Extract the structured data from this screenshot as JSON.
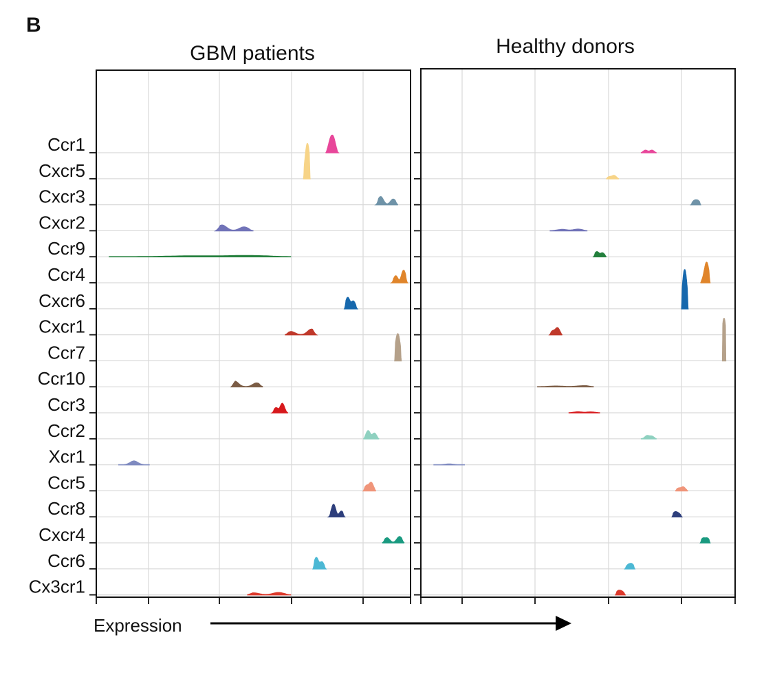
{
  "figure": {
    "panel_label": "B",
    "x_axis_label": "Expression"
  },
  "chart_data": {
    "type": "ridgeline",
    "x_axis_label": "Expression",
    "genes": [
      "Ccr1",
      "Cxcr5",
      "Cxcr3",
      "Cxcr2",
      "Ccr9",
      "Ccr4",
      "Cxcr6",
      "Cxcr1",
      "Ccr7",
      "Ccr10",
      "Ccr3",
      "Ccr2",
      "Xcr1",
      "Ccr5",
      "Ccr8",
      "Cxcr4",
      "Ccr6",
      "Cx3cr1"
    ],
    "colors": {
      "Ccr1": "#e8479a",
      "Cxcr5": "#f7d488",
      "Cxcr3": "#6f93a8",
      "Cxcr2": "#7173b8",
      "Ccr9": "#237f3c",
      "Ccr4": "#e0852b",
      "Cxcr6": "#1668ad",
      "Cxcr1": "#c0392b",
      "Ccr7": "#b5a18a",
      "Ccr10": "#7b5c45",
      "Ccr3": "#d7191c",
      "Ccr2": "#8fd1c0",
      "Xcr1": "#7f8ac0",
      "Ccr5": "#f0957a",
      "Ccr8": "#2e3f7c",
      "Cxcr4": "#1a9a80",
      "Ccr6": "#4cb8d4",
      "Cx3cr1": "#dc3a2c"
    },
    "panels": [
      {
        "title": "GBM patients",
        "x_range": [
          0.0,
          1.0
        ],
        "grid_x": [
          0.17,
          0.4,
          0.63,
          0.86
        ],
        "ridges": {
          "Ccr1": {
            "min": 0.73,
            "max": 0.77,
            "peaks": [
              [
                0.745,
                0.9
              ],
              [
                0.755,
                1.0
              ]
            ]
          },
          "Cxcr5": {
            "min": 0.66,
            "max": 0.68,
            "peaks": [
              [
                0.668,
                0.8
              ],
              [
                0.673,
                2.2
              ]
            ]
          },
          "Cxcr3": {
            "min": 0.89,
            "max": 0.96,
            "peaks": [
              [
                0.905,
                0.65
              ],
              [
                0.945,
                0.45
              ]
            ]
          },
          "Cxcr2": {
            "min": 0.38,
            "max": 0.5,
            "peaks": [
              [
                0.4,
                0.45
              ],
              [
                0.47,
                0.3
              ]
            ]
          },
          "Ccr9": {
            "min": 0.04,
            "max": 0.62,
            "peaks": [
              [
                0.3,
                0.06
              ],
              [
                0.48,
                0.09
              ]
            ]
          },
          "Ccr4": {
            "min": 0.94,
            "max": 0.99,
            "peaks": [
              [
                0.953,
                0.55
              ],
              [
                0.978,
                1.0
              ]
            ]
          },
          "Cxcr6": {
            "min": 0.79,
            "max": 0.83,
            "peaks": [
              [
                0.8,
                0.9
              ],
              [
                0.818,
                0.6
              ]
            ]
          },
          "Cxcr1": {
            "min": 0.6,
            "max": 0.7,
            "peaks": [
              [
                0.62,
                0.25
              ],
              [
                0.685,
                0.45
              ]
            ]
          },
          "Ccr7": {
            "min": 0.95,
            "max": 0.97,
            "peaks": [
              [
                0.955,
                1.0
              ],
              [
                0.962,
                1.5
              ]
            ]
          },
          "Ccr10": {
            "min": 0.43,
            "max": 0.53,
            "peaks": [
              [
                0.44,
                0.45
              ],
              [
                0.51,
                0.3
              ]
            ]
          },
          "Ccr3": {
            "min": 0.56,
            "max": 0.61,
            "peaks": [
              [
                0.572,
                0.4
              ],
              [
                0.592,
                0.75
              ]
            ]
          },
          "Ccr2": {
            "min": 0.85,
            "max": 0.9,
            "peaks": [
              [
                0.865,
                0.65
              ],
              [
                0.885,
                0.45
              ]
            ]
          },
          "Xcr1": {
            "min": 0.07,
            "max": 0.17,
            "peaks": [
              [
                0.12,
                0.3
              ]
            ]
          },
          "Ccr5": {
            "min": 0.85,
            "max": 0.89,
            "peaks": [
              [
                0.86,
                0.4
              ],
              [
                0.875,
                0.65
              ]
            ]
          },
          "Ccr8": {
            "min": 0.74,
            "max": 0.79,
            "peaks": [
              [
                0.755,
                1.0
              ],
              [
                0.78,
                0.45
              ]
            ]
          },
          "Cxcr4": {
            "min": 0.91,
            "max": 0.98,
            "peaks": [
              [
                0.925,
                0.4
              ],
              [
                0.965,
                0.5
              ]
            ]
          },
          "Ccr6": {
            "min": 0.69,
            "max": 0.73,
            "peaks": [
              [
                0.7,
                0.9
              ],
              [
                0.718,
                0.55
              ]
            ]
          },
          "Cx3cr1": {
            "min": 0.48,
            "max": 0.62,
            "peaks": [
              [
                0.5,
                0.15
              ],
              [
                0.58,
                0.18
              ]
            ]
          }
        }
      },
      {
        "title": "Healthy donors",
        "x_range": [
          0.0,
          1.0
        ],
        "grid_x": [
          0.13,
          0.365,
          0.6,
          0.835
        ],
        "ridges": {
          "Ccr1": {
            "min": 0.7,
            "max": 0.75,
            "peaks": [
              [
                0.715,
                0.2
              ],
              [
                0.735,
                0.2
              ]
            ]
          },
          "Cxcr5": {
            "min": 0.59,
            "max": 0.63,
            "peaks": [
              [
                0.6,
                0.15
              ],
              [
                0.615,
                0.25
              ]
            ]
          },
          "Cxcr3": {
            "min": 0.86,
            "max": 0.89,
            "peaks": [
              [
                0.87,
                0.3
              ],
              [
                0.882,
                0.3
              ]
            ]
          },
          "Cxcr2": {
            "min": 0.41,
            "max": 0.53,
            "peaks": [
              [
                0.45,
                0.1
              ],
              [
                0.5,
                0.12
              ]
            ]
          },
          "Ccr9": {
            "min": 0.55,
            "max": 0.59,
            "peaks": [
              [
                0.56,
                0.4
              ],
              [
                0.578,
                0.3
              ]
            ]
          },
          "Ccr4": {
            "min": 0.89,
            "max": 0.92,
            "peaks": [
              [
                0.902,
                0.3
              ],
              [
                0.91,
                1.5
              ]
            ]
          },
          "Cxcr6": {
            "min": 0.83,
            "max": 0.85,
            "peaks": [
              [
                0.838,
                2.0
              ],
              [
                0.842,
                1.3
              ]
            ]
          },
          "Cxcr1": {
            "min": 0.41,
            "max": 0.45,
            "peaks": [
              [
                0.42,
                0.3
              ],
              [
                0.435,
                0.55
              ]
            ]
          },
          "Ccr7": {
            "min": 0.96,
            "max": 0.97,
            "peaks": [
              [
                0.963,
                1.5
              ],
              [
                0.966,
                2.0
              ]
            ]
          },
          "Ccr10": {
            "min": 0.37,
            "max": 0.55,
            "peaks": [
              [
                0.43,
                0.05
              ],
              [
                0.52,
                0.08
              ]
            ]
          },
          "Ccr3": {
            "min": 0.47,
            "max": 0.57,
            "peaks": [
              [
                0.5,
                0.07
              ],
              [
                0.54,
                0.06
              ]
            ]
          },
          "Ccr2": {
            "min": 0.7,
            "max": 0.75,
            "peaks": [
              [
                0.72,
                0.25
              ],
              [
                0.735,
                0.2
              ]
            ]
          },
          "Xcr1": {
            "min": 0.04,
            "max": 0.14,
            "peaks": [
              [
                0.09,
                0.06
              ]
            ]
          },
          "Ccr5": {
            "min": 0.81,
            "max": 0.85,
            "peaks": [
              [
                0.82,
                0.2
              ],
              [
                0.835,
                0.3
              ]
            ]
          },
          "Ccr8": {
            "min": 0.8,
            "max": 0.83,
            "peaks": [
              [
                0.808,
                0.35
              ],
              [
                0.82,
                0.25
              ]
            ]
          },
          "Cxcr4": {
            "min": 0.89,
            "max": 0.92,
            "peaks": [
              [
                0.898,
                0.35
              ],
              [
                0.912,
                0.35
              ]
            ]
          },
          "Ccr6": {
            "min": 0.65,
            "max": 0.68,
            "peaks": [
              [
                0.66,
                0.3
              ],
              [
                0.672,
                0.35
              ]
            ]
          },
          "Cx3cr1": {
            "min": 0.62,
            "max": 0.65,
            "peaks": [
              [
                0.628,
                0.3
              ],
              [
                0.64,
                0.25
              ]
            ]
          }
        }
      }
    ]
  }
}
